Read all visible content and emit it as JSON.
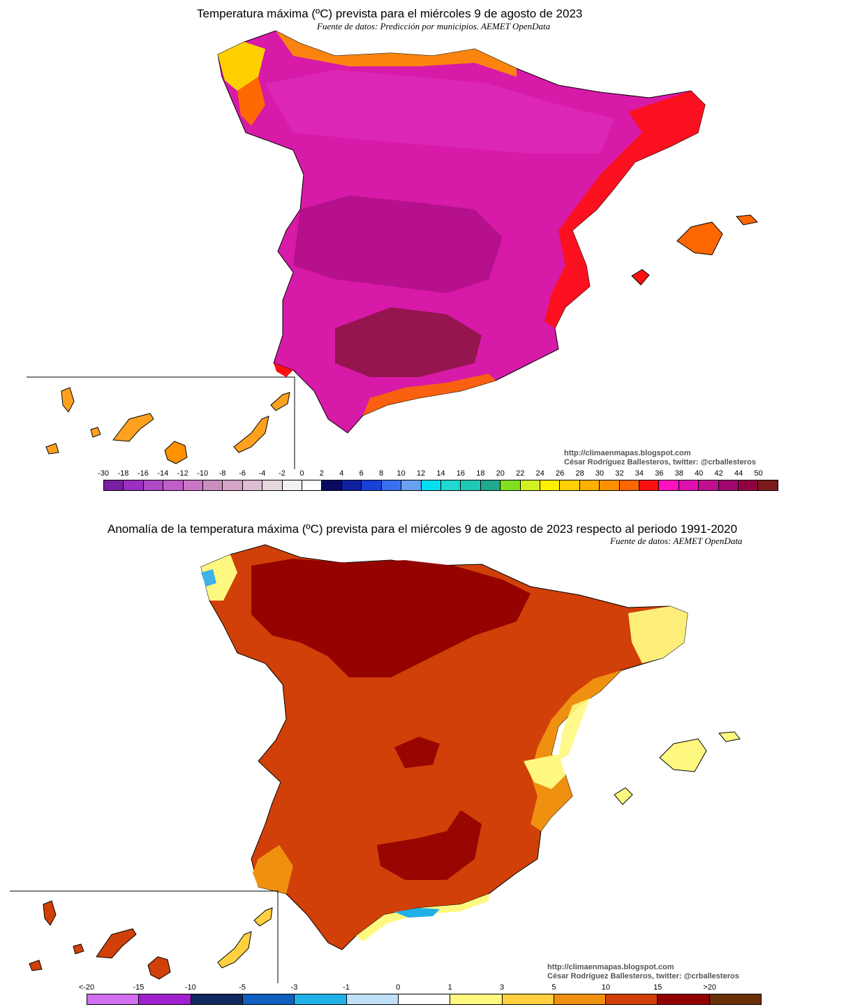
{
  "map1": {
    "title": "Temperatura máxima (ºC) prevista para el miércoles 9 de agosto de 2023",
    "source": "Fuente de datos: Predicción por municipios. AEMET OpenData",
    "credit_url": "http://climaenmapas.blogspot.com",
    "credit_author": "César Rodríguez Ballesteros, twitter: @crballesteros",
    "legend_labels": [
      "-30",
      "-18",
      "-16",
      "-14",
      "-12",
      "-10",
      "-8",
      "-6",
      "-4",
      "-2",
      "0",
      "2",
      "4",
      "6",
      "8",
      "10",
      "12",
      "14",
      "16",
      "18",
      "20",
      "22",
      "24",
      "26",
      "28",
      "30",
      "32",
      "34",
      "36",
      "38",
      "40",
      "42",
      "44",
      "50"
    ],
    "legend_colors": [
      "#7a1fa2",
      "#9b30c0",
      "#b04ac8",
      "#c05ec8",
      "#c977c4",
      "#cc8dbf",
      "#d4a5c6",
      "#dcbfd2",
      "#e6d8e0",
      "#f2f2f2",
      "#ffffff",
      "#0a0a60",
      "#1020a0",
      "#1a40d8",
      "#3a70f0",
      "#6aa0f0",
      "#00e0f0",
      "#20d8d0",
      "#20c8b8",
      "#20a890",
      "#80e020",
      "#d0f020",
      "#fff000",
      "#ffd000",
      "#ffb000",
      "#ff9000",
      "#ff6800",
      "#ff1010",
      "#ff10c0",
      "#e010b0",
      "#c01090",
      "#a00870",
      "#900040",
      "#7a1a1a"
    ]
  },
  "map2": {
    "title": "Anomalía de la temperatura máxima (ºC) prevista para el miércoles 9 de agosto de 2023 respecto al periodo 1991-2020",
    "source": "Fuente de datos: AEMET OpenData",
    "credit_url": "http://climaenmapas.blogspot.com",
    "credit_author": "César Rodríguez Ballesteros, twitter: @crballesteros",
    "legend_labels": [
      "<-20",
      "-15",
      "-10",
      "-5",
      "-3",
      "-1",
      "0",
      "1",
      "3",
      "5",
      "10",
      "15",
      ">20"
    ],
    "legend_colors": [
      "#d070f0",
      "#a020d0",
      "#102a60",
      "#1060c0",
      "#20b0e8",
      "#c0e0f8",
      "#ffffff",
      "#fff880",
      "#ffd040",
      "#f09010",
      "#d04008",
      "#900000",
      "#6a3008"
    ]
  }
}
